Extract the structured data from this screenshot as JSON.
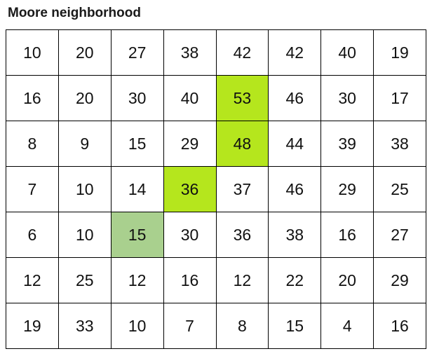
{
  "title": "Moore neighborhood",
  "colors": {
    "highlight_bright": "#b5e61d",
    "highlight_soft": "#a9d08e",
    "grid_line": "#000000"
  },
  "grid": [
    [
      10,
      20,
      27,
      38,
      42,
      42,
      40,
      19
    ],
    [
      16,
      20,
      30,
      40,
      53,
      46,
      30,
      17
    ],
    [
      8,
      9,
      15,
      29,
      48,
      44,
      39,
      38
    ],
    [
      7,
      10,
      14,
      36,
      37,
      46,
      29,
      25
    ],
    [
      6,
      10,
      15,
      30,
      36,
      38,
      16,
      27
    ],
    [
      12,
      25,
      12,
      16,
      12,
      22,
      20,
      29
    ],
    [
      19,
      33,
      10,
      7,
      8,
      15,
      4,
      16
    ]
  ],
  "highlights": [
    {
      "row": 1,
      "col": 4,
      "color": "#b5e61d"
    },
    {
      "row": 2,
      "col": 4,
      "color": "#b5e61d"
    },
    {
      "row": 3,
      "col": 3,
      "color": "#b5e61d"
    },
    {
      "row": 4,
      "col": 2,
      "color": "#a9d08e"
    }
  ]
}
